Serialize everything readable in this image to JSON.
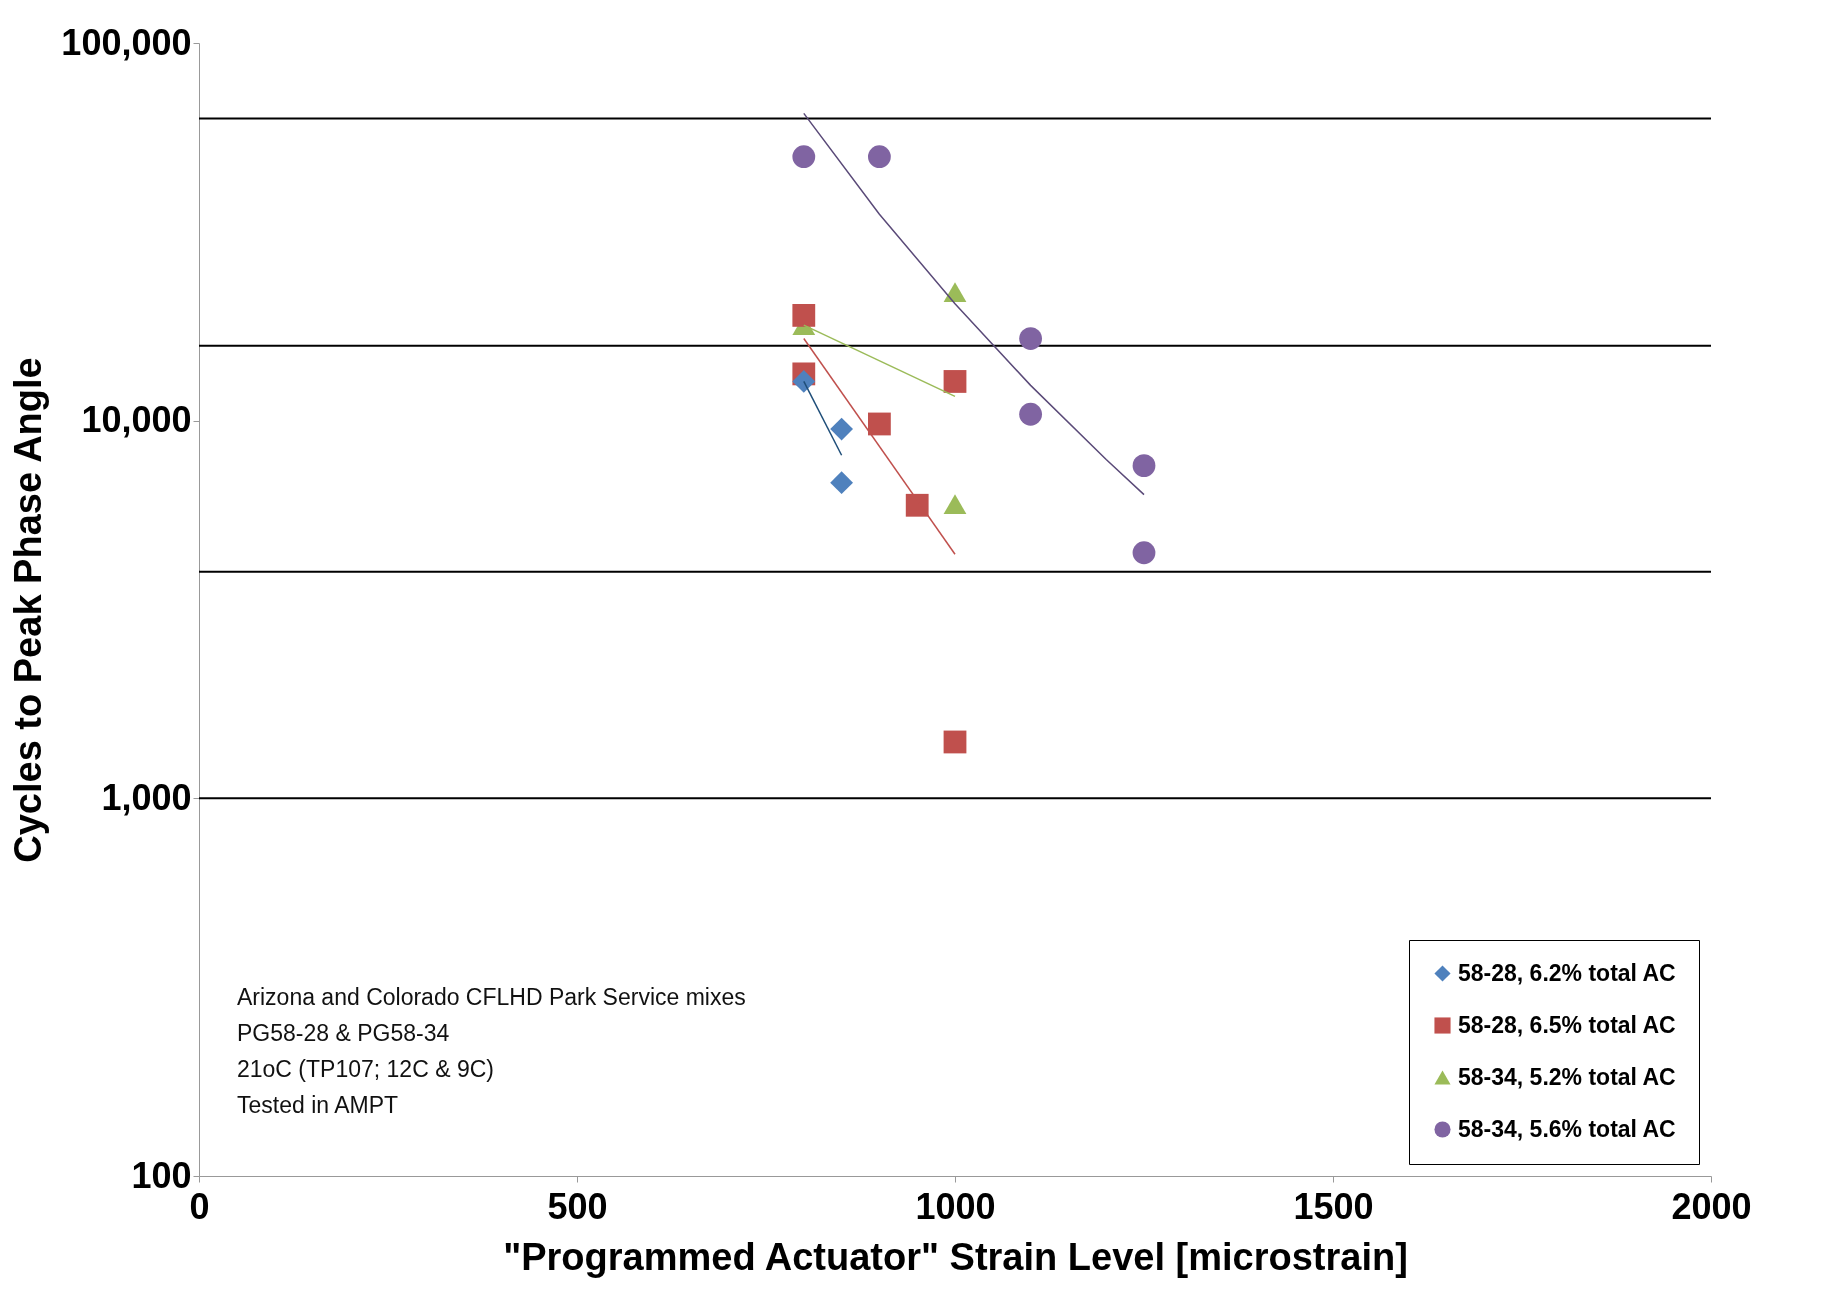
{
  "chart_data": {
    "type": "scatter",
    "xlabel": "\"Programmed Actuator\" Strain Level [microstrain]",
    "ylabel": "Cycles to Peak Phase Angle",
    "log": "y",
    "xlim": [
      0,
      2000
    ],
    "xticks": [
      0,
      500,
      1000,
      1500,
      2000
    ],
    "ylim": [
      100,
      100000
    ],
    "yticks": [
      {
        "value": 100,
        "label": "100"
      },
      {
        "value": 1000,
        "label": "1,000"
      },
      {
        "value": 10000,
        "label": "10,000"
      },
      {
        "value": 100000,
        "label": "100,000"
      }
    ],
    "grid": false,
    "legend": "bottom right",
    "series": [
      {
        "name": "58-28, 6.2% total AC",
        "color": "#4f81bd",
        "marker": "diamond",
        "x": [
          800,
          850,
          850
        ],
        "values": [
          12700,
          9500,
          6850
        ]
      },
      {
        "name": "58-28, 6.5% total AC",
        "color": "#c0504d",
        "marker": "square",
        "x": [
          800,
          800,
          900,
          950,
          1000,
          1000
        ],
        "values": [
          19000,
          13300,
          9800,
          5970,
          12700,
          1410
        ]
      },
      {
        "name": "58-34, 5.2% total AC",
        "color": "#9bbb59",
        "marker": "triangle",
        "x": [
          800,
          1000,
          1000
        ],
        "values": [
          17900,
          21900,
          6010
        ]
      },
      {
        "name": "58-34, 5.6% total AC",
        "color": "#8064a2",
        "marker": "circle",
        "x": [
          800,
          900,
          1100,
          1100,
          1250,
          1250
        ],
        "values": [
          50000,
          50000,
          16500,
          10400,
          7600,
          4470
        ]
      },
      {
        "type": "line",
        "color": "#1f4e79",
        "marker": "none",
        "x": [
          800,
          850
        ],
        "values": [
          12700,
          8100
        ]
      },
      {
        "type": "line",
        "color": "#c0504d",
        "marker": "none",
        "x": [
          800,
          1000
        ],
        "values": [
          16500,
          4430
        ]
      },
      {
        "type": "line",
        "color": "#9bbb59",
        "marker": "none",
        "x": [
          800,
          1000
        ],
        "values": [
          17900,
          11600
        ]
      },
      {
        "type": "line",
        "color": "#5a4a78",
        "marker": "none",
        "x": [
          800,
          900,
          1000,
          1100,
          1200,
          1250
        ],
        "values": [
          65100,
          35200,
          20400,
          12400,
          7890,
          6370
        ]
      }
    ],
    "ref_lines": [
      {
        "axis": "y",
        "value": 63100,
        "color": "#000000"
      },
      {
        "axis": "y",
        "value": 15800,
        "color": "#000000"
      },
      {
        "axis": "y",
        "value": 3980,
        "color": "#000000"
      },
      {
        "axis": "y",
        "value": 1000,
        "color": "#000000"
      }
    ],
    "annotations": [
      "Arizona and Colorado CFLHD Park Service mixes",
      "PG58-28 & PG58-34",
      "21oC      (TP107; 12C  & 9C)",
      "Tested in AMPT"
    ]
  }
}
